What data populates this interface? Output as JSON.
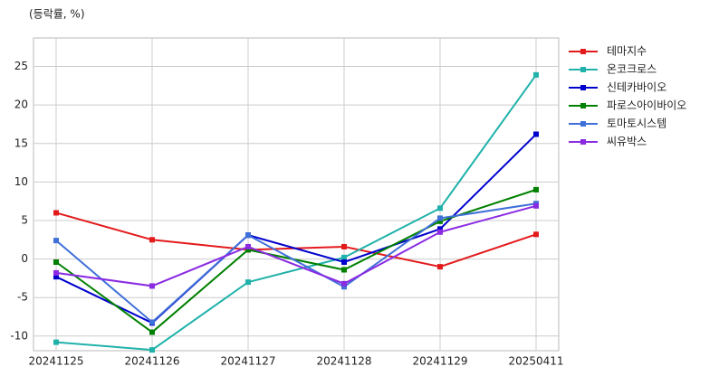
{
  "chart_data": {
    "type": "line",
    "y_label": "(등락률, %)",
    "categories": [
      "20241125",
      "20241126",
      "20241127",
      "20241128",
      "20241129",
      "20250411"
    ],
    "series": [
      {
        "name": "테마지수",
        "color": "#e31a1c",
        "values": [
          6.0,
          2.5,
          1.2,
          1.6,
          -1.0,
          3.2
        ]
      },
      {
        "name": "온코크로스",
        "color": "#20b2aa",
        "values": [
          -10.8,
          -11.8,
          -3.0,
          0.2,
          6.6,
          23.9
        ]
      },
      {
        "name": "신테카바이오",
        "color": "#0000cd",
        "values": [
          -2.3,
          -8.3,
          3.1,
          -0.4,
          3.9,
          16.2
        ]
      },
      {
        "name": "파로스아이바이오",
        "color": "#008000",
        "values": [
          -0.4,
          -9.5,
          1.2,
          -1.4,
          4.9,
          9.0
        ]
      },
      {
        "name": "토마토시스템",
        "color": "#3f6fd8",
        "values": [
          2.4,
          -8.2,
          3.1,
          -3.6,
          5.3,
          7.2
        ]
      },
      {
        "name": "씨유박스",
        "color": "#8a2be2",
        "values": [
          -1.8,
          -3.5,
          1.6,
          -3.2,
          3.5,
          6.9
        ]
      }
    ],
    "ylim": [
      -11.9,
      28.7
    ],
    "yticks": [
      -10,
      -5,
      0,
      5,
      10,
      15,
      20,
      25
    ],
    "grid": true,
    "legend": "right"
  }
}
